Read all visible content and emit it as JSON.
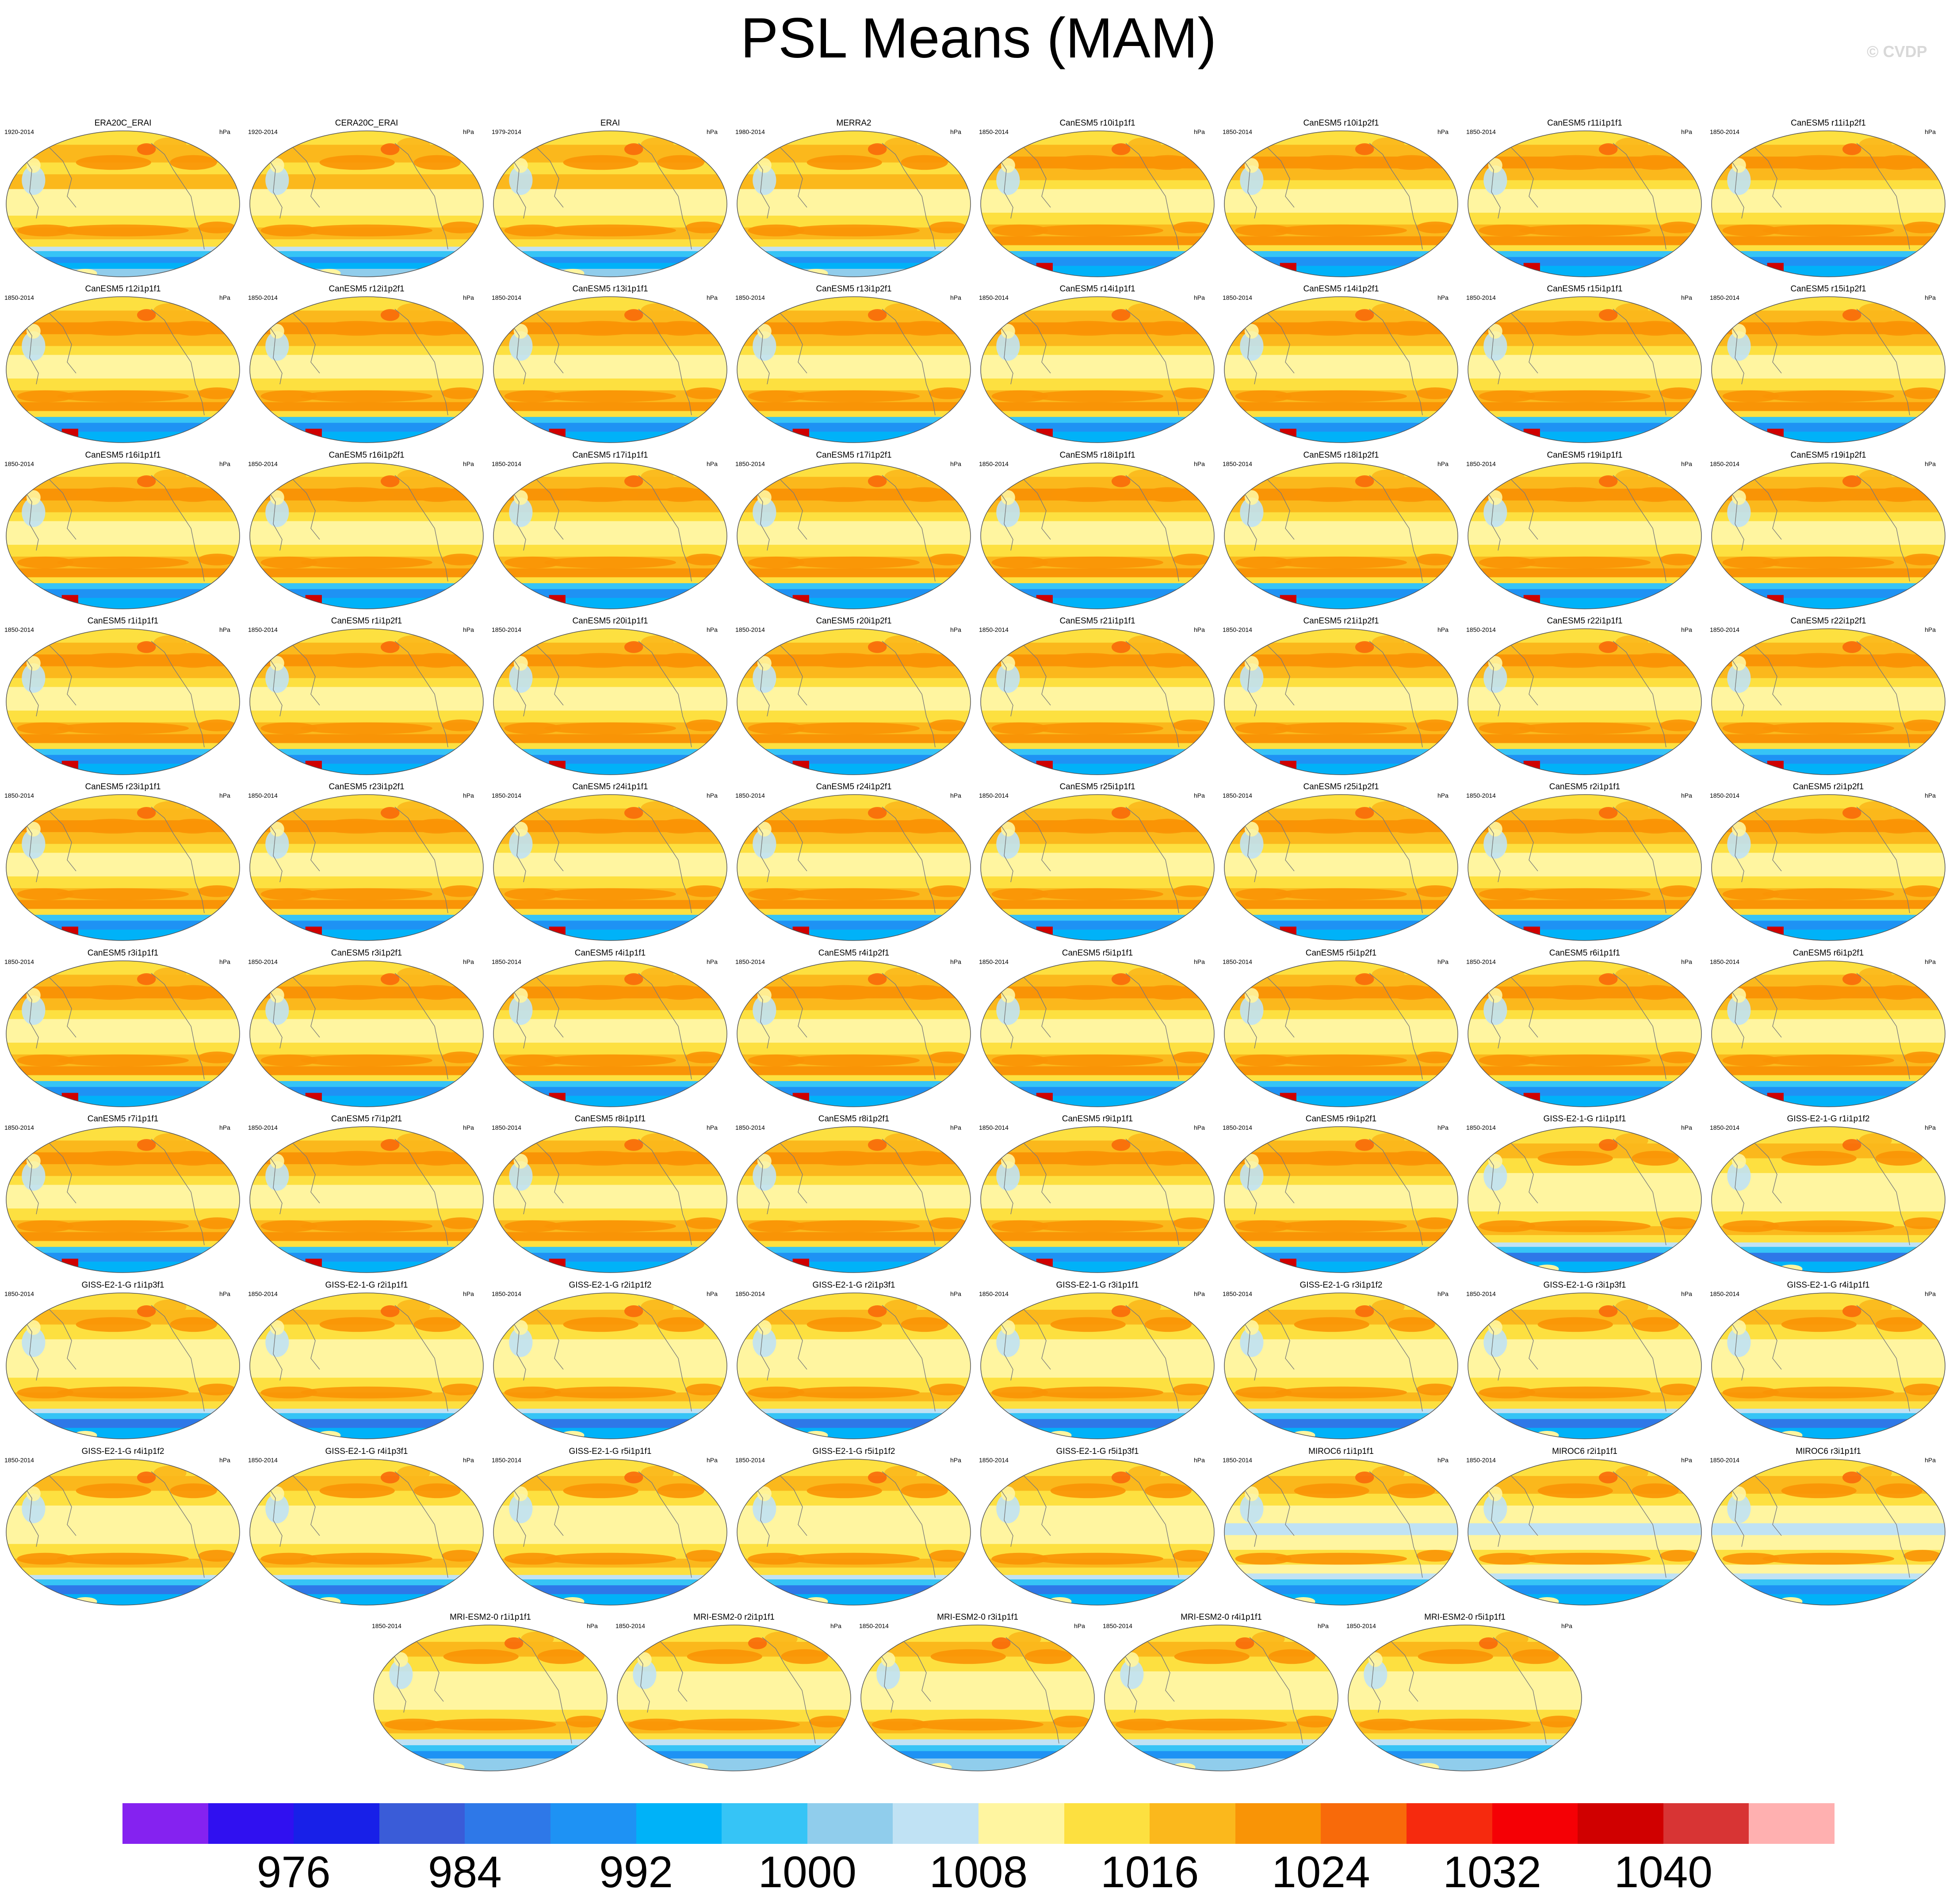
{
  "title": "PSL Means (MAM)",
  "copyright": "© CVDP",
  "chart_data": {
    "type": "heatmap",
    "title": "PSL Means (MAM)",
    "variable": "Sea level pressure",
    "units": "hPa",
    "projection": "Robinson global map, Pacific-centered",
    "colorbar": {
      "levels": [
        972,
        976,
        980,
        984,
        988,
        992,
        996,
        1000,
        1004,
        1008,
        1012,
        1016,
        1020,
        1024,
        1028,
        1032,
        1036,
        1040,
        1044
      ],
      "labels": [
        "976",
        "984",
        "992",
        "1000",
        "1008",
        "1016",
        "1024",
        "1032",
        "1040"
      ],
      "colors": [
        "#8522f0",
        "#3010f0",
        "#1820e8",
        "#3a5cd8",
        "#2e78e8",
        "#1e92f4",
        "#00b2f8",
        "#36c4f6",
        "#90cdec",
        "#c0e2f4",
        "#fff5a0",
        "#fde040",
        "#fbb81c",
        "#f99406",
        "#f86a0a",
        "#f62a0e",
        "#f50005",
        "#d00000",
        "#d83434",
        "#ffb0b0"
      ]
    },
    "panels": [
      {
        "name": "ERA20C_ERAI",
        "period": "1920-2014",
        "units": "hPa"
      },
      {
        "name": "CERA20C_ERAI",
        "period": "1920-2014",
        "units": "hPa"
      },
      {
        "name": "ERAI",
        "period": "1979-2014",
        "units": "hPa"
      },
      {
        "name": "MERRA2",
        "period": "1980-2014",
        "units": "hPa"
      },
      {
        "name": "CanESM5 r10i1p1f1",
        "period": "1850-2014",
        "units": "hPa"
      },
      {
        "name": "CanESM5 r10i1p2f1",
        "period": "1850-2014",
        "units": "hPa"
      },
      {
        "name": "CanESM5 r11i1p1f1",
        "period": "1850-2014",
        "units": "hPa"
      },
      {
        "name": "CanESM5 r11i1p2f1",
        "period": "1850-2014",
        "units": "hPa"
      },
      {
        "name": "CanESM5 r12i1p1f1",
        "period": "1850-2014",
        "units": "hPa"
      },
      {
        "name": "CanESM5 r12i1p2f1",
        "period": "1850-2014",
        "units": "hPa"
      },
      {
        "name": "CanESM5 r13i1p1f1",
        "period": "1850-2014",
        "units": "hPa"
      },
      {
        "name": "CanESM5 r13i1p2f1",
        "period": "1850-2014",
        "units": "hPa"
      },
      {
        "name": "CanESM5 r14i1p1f1",
        "period": "1850-2014",
        "units": "hPa"
      },
      {
        "name": "CanESM5 r14i1p2f1",
        "period": "1850-2014",
        "units": "hPa"
      },
      {
        "name": "CanESM5 r15i1p1f1",
        "period": "1850-2014",
        "units": "hPa"
      },
      {
        "name": "CanESM5 r15i1p2f1",
        "period": "1850-2014",
        "units": "hPa"
      },
      {
        "name": "CanESM5 r16i1p1f1",
        "period": "1850-2014",
        "units": "hPa"
      },
      {
        "name": "CanESM5 r16i1p2f1",
        "period": "1850-2014",
        "units": "hPa"
      },
      {
        "name": "CanESM5 r17i1p1f1",
        "period": "1850-2014",
        "units": "hPa"
      },
      {
        "name": "CanESM5 r17i1p2f1",
        "period": "1850-2014",
        "units": "hPa"
      },
      {
        "name": "CanESM5 r18i1p1f1",
        "period": "1850-2014",
        "units": "hPa"
      },
      {
        "name": "CanESM5 r18i1p2f1",
        "period": "1850-2014",
        "units": "hPa"
      },
      {
        "name": "CanESM5 r19i1p1f1",
        "period": "1850-2014",
        "units": "hPa"
      },
      {
        "name": "CanESM5 r19i1p2f1",
        "period": "1850-2014",
        "units": "hPa"
      },
      {
        "name": "CanESM5 r1i1p1f1",
        "period": "1850-2014",
        "units": "hPa"
      },
      {
        "name": "CanESM5 r1i1p2f1",
        "period": "1850-2014",
        "units": "hPa"
      },
      {
        "name": "CanESM5 r20i1p1f1",
        "period": "1850-2014",
        "units": "hPa"
      },
      {
        "name": "CanESM5 r20i1p2f1",
        "period": "1850-2014",
        "units": "hPa"
      },
      {
        "name": "CanESM5 r21i1p1f1",
        "period": "1850-2014",
        "units": "hPa"
      },
      {
        "name": "CanESM5 r21i1p2f1",
        "period": "1850-2014",
        "units": "hPa"
      },
      {
        "name": "CanESM5 r22i1p1f1",
        "period": "1850-2014",
        "units": "hPa"
      },
      {
        "name": "CanESM5 r22i1p2f1",
        "period": "1850-2014",
        "units": "hPa"
      },
      {
        "name": "CanESM5 r23i1p1f1",
        "period": "1850-2014",
        "units": "hPa"
      },
      {
        "name": "CanESM5 r23i1p2f1",
        "period": "1850-2014",
        "units": "hPa"
      },
      {
        "name": "CanESM5 r24i1p1f1",
        "period": "1850-2014",
        "units": "hPa"
      },
      {
        "name": "CanESM5 r24i1p2f1",
        "period": "1850-2014",
        "units": "hPa"
      },
      {
        "name": "CanESM5 r25i1p1f1",
        "period": "1850-2014",
        "units": "hPa"
      },
      {
        "name": "CanESM5 r25i1p2f1",
        "period": "1850-2014",
        "units": "hPa"
      },
      {
        "name": "CanESM5 r2i1p1f1",
        "period": "1850-2014",
        "units": "hPa"
      },
      {
        "name": "CanESM5 r2i1p2f1",
        "period": "1850-2014",
        "units": "hPa"
      },
      {
        "name": "CanESM5 r3i1p1f1",
        "period": "1850-2014",
        "units": "hPa"
      },
      {
        "name": "CanESM5 r3i1p2f1",
        "period": "1850-2014",
        "units": "hPa"
      },
      {
        "name": "CanESM5 r4i1p1f1",
        "period": "1850-2014",
        "units": "hPa"
      },
      {
        "name": "CanESM5 r4i1p2f1",
        "period": "1850-2014",
        "units": "hPa"
      },
      {
        "name": "CanESM5 r5i1p1f1",
        "period": "1850-2014",
        "units": "hPa"
      },
      {
        "name": "CanESM5 r5i1p2f1",
        "period": "1850-2014",
        "units": "hPa"
      },
      {
        "name": "CanESM5 r6i1p1f1",
        "period": "1850-2014",
        "units": "hPa"
      },
      {
        "name": "CanESM5 r6i1p2f1",
        "period": "1850-2014",
        "units": "hPa"
      },
      {
        "name": "CanESM5 r7i1p1f1",
        "period": "1850-2014",
        "units": "hPa"
      },
      {
        "name": "CanESM5 r7i1p2f1",
        "period": "1850-2014",
        "units": "hPa"
      },
      {
        "name": "CanESM5 r8i1p1f1",
        "period": "1850-2014",
        "units": "hPa"
      },
      {
        "name": "CanESM5 r8i1p2f1",
        "period": "1850-2014",
        "units": "hPa"
      },
      {
        "name": "CanESM5 r9i1p1f1",
        "period": "1850-2014",
        "units": "hPa"
      },
      {
        "name": "CanESM5 r9i1p2f1",
        "period": "1850-2014",
        "units": "hPa"
      },
      {
        "name": "GISS-E2-1-G r1i1p1f1",
        "period": "1850-2014",
        "units": "hPa"
      },
      {
        "name": "GISS-E2-1-G r1i1p1f2",
        "period": "1850-2014",
        "units": "hPa"
      },
      {
        "name": "GISS-E2-1-G r1i1p3f1",
        "period": "1850-2014",
        "units": "hPa"
      },
      {
        "name": "GISS-E2-1-G r2i1p1f1",
        "period": "1850-2014",
        "units": "hPa"
      },
      {
        "name": "GISS-E2-1-G r2i1p1f2",
        "period": "1850-2014",
        "units": "hPa"
      },
      {
        "name": "GISS-E2-1-G r2i1p3f1",
        "period": "1850-2014",
        "units": "hPa"
      },
      {
        "name": "GISS-E2-1-G r3i1p1f1",
        "period": "1850-2014",
        "units": "hPa"
      },
      {
        "name": "GISS-E2-1-G r3i1p1f2",
        "period": "1850-2014",
        "units": "hPa"
      },
      {
        "name": "GISS-E2-1-G r3i1p3f1",
        "period": "1850-2014",
        "units": "hPa"
      },
      {
        "name": "GISS-E2-1-G r4i1p1f1",
        "period": "1850-2014",
        "units": "hPa"
      },
      {
        "name": "GISS-E2-1-G r4i1p1f2",
        "period": "1850-2014",
        "units": "hPa"
      },
      {
        "name": "GISS-E2-1-G r4i1p3f1",
        "period": "1850-2014",
        "units": "hPa"
      },
      {
        "name": "GISS-E2-1-G r5i1p1f1",
        "period": "1850-2014",
        "units": "hPa"
      },
      {
        "name": "GISS-E2-1-G r5i1p1f2",
        "period": "1850-2014",
        "units": "hPa"
      },
      {
        "name": "GISS-E2-1-G r5i1p3f1",
        "period": "1850-2014",
        "units": "hPa"
      },
      {
        "name": "MIROC6 r1i1p1f1",
        "period": "1850-2014",
        "units": "hPa"
      },
      {
        "name": "MIROC6 r2i1p1f1",
        "period": "1850-2014",
        "units": "hPa"
      },
      {
        "name": "MIROC6 r3i1p1f1",
        "period": "1850-2014",
        "units": "hPa"
      },
      {
        "name": "MRI-ESM2-0 r1i1p1f1",
        "period": "1850-2014",
        "units": "hPa"
      },
      {
        "name": "MRI-ESM2-0 r2i1p1f1",
        "period": "1850-2014",
        "units": "hPa"
      },
      {
        "name": "MRI-ESM2-0 r3i1p1f1",
        "period": "1850-2014",
        "units": "hPa"
      },
      {
        "name": "MRI-ESM2-0 r4i1p1f1",
        "period": "1850-2014",
        "units": "hPa"
      },
      {
        "name": "MRI-ESM2-0 r5i1p1f1",
        "period": "1850-2014",
        "units": "hPa"
      }
    ]
  }
}
